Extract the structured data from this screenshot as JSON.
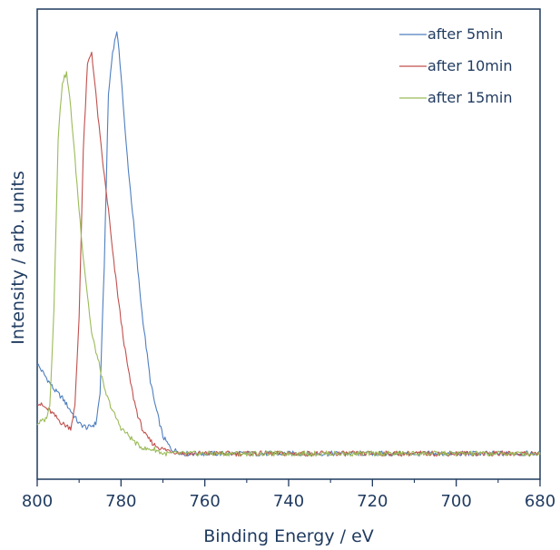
{
  "chart_data": {
    "type": "line",
    "xlabel": "Binding Energy / eV",
    "ylabel": "Intensity / arb. units",
    "xlim": [
      800,
      680
    ],
    "x_reversed": true,
    "ylim": [
      -0.05,
      1.05
    ],
    "x_ticks": [
      "800",
      "780",
      "760",
      "740",
      "720",
      "700",
      "680"
    ],
    "y_ticks_shown": false,
    "grid": false,
    "legend_position": "top-right",
    "colors": {
      "axis": "#1f3a5f"
    },
    "series": [
      {
        "name": "after 5min",
        "color": "#4f7fc0",
        "x": [
          800,
          798,
          796,
          794,
          792,
          790,
          788,
          786,
          785,
          784,
          783,
          782,
          781,
          780,
          779,
          778,
          777,
          776,
          775,
          774,
          773,
          772,
          771,
          770,
          768,
          765,
          760,
          740,
          720,
          700,
          680
        ],
        "y": [
          0.22,
          0.19,
          0.16,
          0.14,
          0.11,
          0.08,
          0.07,
          0.08,
          0.15,
          0.45,
          0.85,
          0.95,
          1.0,
          0.9,
          0.76,
          0.65,
          0.55,
          0.44,
          0.34,
          0.26,
          0.18,
          0.13,
          0.09,
          0.05,
          0.02,
          0.01,
          0.01,
          0.01,
          0.01,
          0.01,
          0.01
        ]
      },
      {
        "name": "after 10min",
        "color": "#c0504d",
        "x": [
          800,
          797,
          794,
          792,
          791,
          790,
          789,
          788,
          787,
          786,
          785,
          784,
          783,
          782,
          781,
          780,
          779,
          778,
          777,
          776,
          775,
          774,
          772,
          770,
          765,
          760,
          740,
          720,
          700,
          680
        ],
        "y": [
          0.13,
          0.11,
          0.08,
          0.07,
          0.12,
          0.33,
          0.72,
          0.92,
          0.95,
          0.85,
          0.75,
          0.66,
          0.58,
          0.48,
          0.4,
          0.32,
          0.25,
          0.19,
          0.14,
          0.1,
          0.07,
          0.05,
          0.03,
          0.02,
          0.01,
          0.01,
          0.01,
          0.01,
          0.01,
          0.01
        ]
      },
      {
        "name": "after 15min",
        "color": "#9bbb59",
        "x": [
          800,
          798,
          797,
          796,
          795,
          794,
          793,
          792,
          791,
          790,
          789,
          788,
          787,
          786,
          785,
          784,
          782,
          780,
          778,
          776,
          774,
          772,
          770,
          760,
          740,
          720,
          700,
          680
        ],
        "y": [
          0.08,
          0.09,
          0.12,
          0.35,
          0.75,
          0.88,
          0.9,
          0.82,
          0.7,
          0.58,
          0.47,
          0.38,
          0.29,
          0.25,
          0.21,
          0.16,
          0.11,
          0.07,
          0.05,
          0.03,
          0.02,
          0.02,
          0.01,
          0.01,
          0.01,
          0.01,
          0.01,
          0.01
        ]
      }
    ]
  }
}
